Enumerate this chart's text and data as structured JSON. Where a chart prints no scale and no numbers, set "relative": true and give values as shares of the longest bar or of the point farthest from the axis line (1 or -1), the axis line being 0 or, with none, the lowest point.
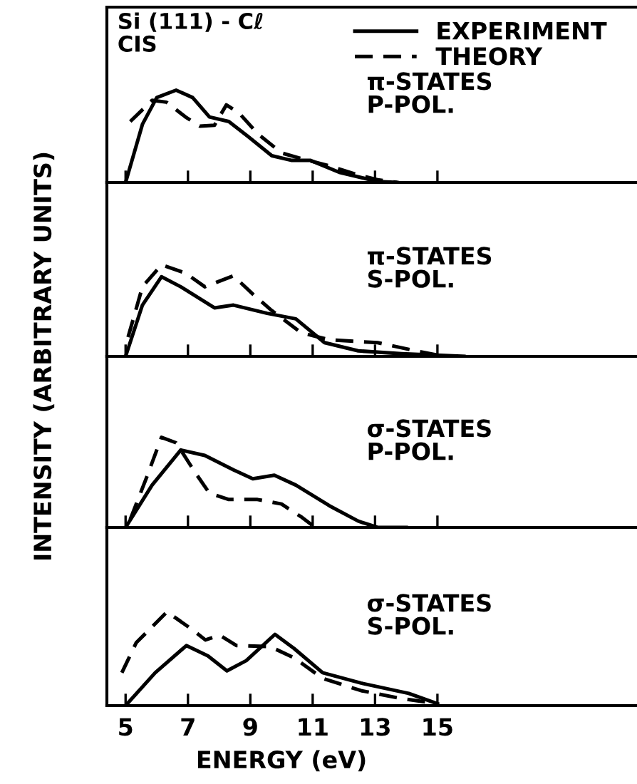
{
  "chart_data": [
    {
      "type": "line",
      "relative": true,
      "xlim": [
        4.4,
        21.4
      ],
      "xticks": [
        5,
        7,
        9,
        11,
        13,
        15
      ],
      "tick_labels": false,
      "ylabel": "INTENSITY (ARBITRARY UNITS)",
      "legend": "top right",
      "annotations": [
        "Si (111) - Cℓ\nCIS",
        "π-STATES\nP-POL."
      ],
      "series": [
        {
          "name": "EXPERIMENT",
          "color": "#000000",
          "line_style": "solid",
          "x": [
            5,
            5.54,
            6.0,
            6.62,
            7.15,
            7.69,
            8.31,
            8.92,
            9.69,
            10.31,
            10.92,
            11.85,
            13.08,
            13.7
          ],
          "values": [
            0,
            0.63,
            0.92,
            1.0,
            0.92,
            0.71,
            0.66,
            0.5,
            0.29,
            0.24,
            0.24,
            0.11,
            0.01,
            0
          ]
        },
        {
          "name": "THEORY",
          "color": "#000000",
          "line_style": "dashed",
          "x": [
            5.15,
            5.85,
            6.31,
            6.92,
            7.38,
            7.85,
            8.23,
            8.62,
            9.23,
            10.0,
            10.62,
            11.54,
            12.46,
            13.08,
            13.7
          ],
          "values": [
            0.66,
            0.89,
            0.87,
            0.71,
            0.61,
            0.62,
            0.84,
            0.76,
            0.53,
            0.32,
            0.26,
            0.18,
            0.08,
            0.03,
            0
          ]
        }
      ]
    },
    {
      "type": "line",
      "relative": true,
      "xlim": [
        4.4,
        21.4
      ],
      "xticks": [
        5,
        7,
        9,
        11,
        13,
        15
      ],
      "tick_labels": false,
      "annotations": [
        "π-STATES\nS-POL."
      ],
      "series": [
        {
          "color": "#000000",
          "line_style": "solid",
          "x": [
            5,
            5.54,
            6.15,
            6.77,
            7.85,
            8.46,
            9.54,
            10.46,
            11.38,
            12.46,
            13.85,
            15.85
          ],
          "values": [
            0,
            0.56,
            0.87,
            0.76,
            0.53,
            0.56,
            0.47,
            0.41,
            0.15,
            0.06,
            0.03,
            0
          ]
        },
        {
          "color": "#000000",
          "line_style": "dashed",
          "x": [
            5.08,
            5.54,
            6.15,
            6.92,
            7.54,
            8.46,
            9.08,
            9.69,
            10.62,
            11.54,
            13.08,
            14.31,
            15.23
          ],
          "values": [
            0.21,
            0.76,
            1.0,
            0.91,
            0.76,
            0.88,
            0.68,
            0.5,
            0.26,
            0.18,
            0.15,
            0.06,
            0
          ]
        }
      ]
    },
    {
      "type": "line",
      "relative": true,
      "xlim": [
        4.4,
        21.4
      ],
      "xticks": [
        5,
        7,
        9,
        11,
        13,
        15
      ],
      "tick_labels": false,
      "annotations": [
        "σ-STATES\nP-POL."
      ],
      "series": [
        {
          "color": "#000000",
          "line_style": "solid",
          "x": [
            5,
            5.85,
            6.77,
            7.54,
            8.46,
            9.08,
            9.77,
            10.46,
            11.54,
            12.46,
            13.08,
            14.0
          ],
          "values": [
            0,
            0.47,
            0.86,
            0.8,
            0.64,
            0.54,
            0.58,
            0.47,
            0.24,
            0.07,
            0,
            0
          ]
        },
        {
          "color": "#000000",
          "line_style": "dashed",
          "x": [
            5.15,
            5.69,
            6.15,
            6.62,
            7.23,
            7.69,
            8.31,
            9.23,
            10.0,
            10.62,
            11.08
          ],
          "values": [
            0.09,
            0.57,
            1.0,
            0.94,
            0.61,
            0.38,
            0.31,
            0.31,
            0.26,
            0.12,
            0
          ]
        }
      ]
    },
    {
      "type": "line",
      "relative": true,
      "xlim": [
        4.4,
        21.4
      ],
      "xticks": [
        5,
        7,
        9,
        11,
        13,
        15
      ],
      "tick_labels": "x",
      "xlabel": "ENERGY (eV)",
      "annotations": [
        "σ-STATES\nS-POL."
      ],
      "series": [
        {
          "color": "#000000",
          "line_style": "solid",
          "x": [
            5,
            5.95,
            6.95,
            7.64,
            8.25,
            8.87,
            9.79,
            10.4,
            11.32,
            12.55,
            14.08,
            15.0
          ],
          "values": [
            0,
            0.35,
            0.64,
            0.53,
            0.37,
            0.48,
            0.76,
            0.61,
            0.35,
            0.24,
            0.13,
            0.02
          ]
        },
        {
          "color": "#000000",
          "line_style": "dashed",
          "x": [
            4.88,
            5.34,
            6.33,
            7.18,
            7.56,
            8.02,
            8.56,
            9.63,
            10.4,
            11.32,
            12.55,
            13.77,
            15.0
          ],
          "values": [
            0.35,
            0.67,
            1.0,
            0.8,
            0.7,
            0.75,
            0.64,
            0.63,
            0.51,
            0.29,
            0.16,
            0.08,
            0.02
          ]
        }
      ]
    }
  ]
}
